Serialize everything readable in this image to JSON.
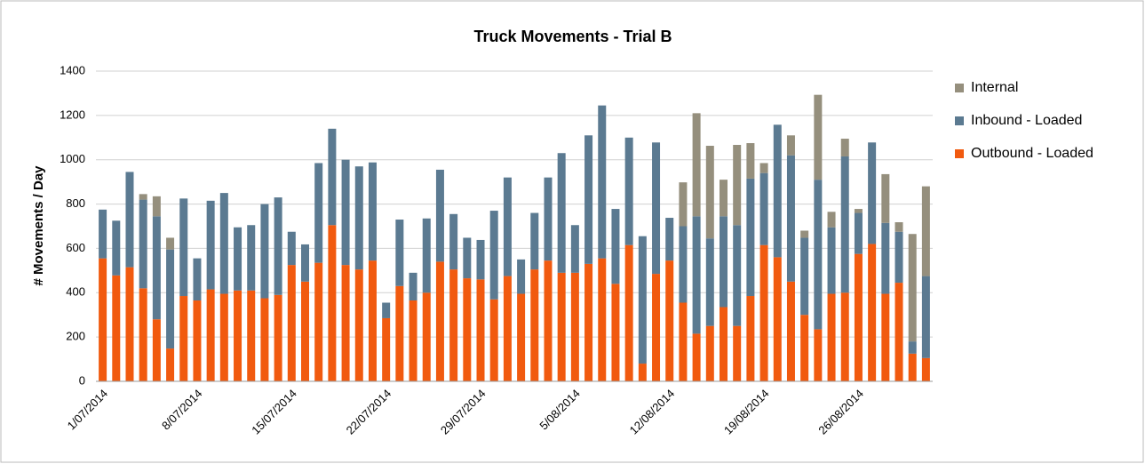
{
  "chart_data": {
    "type": "stacked_bar",
    "title": "Truck Movements - Trial B",
    "y_label": "# Movements / Day",
    "categories": [
      "1/07/2014",
      null,
      null,
      null,
      null,
      null,
      null,
      "8/07/2014",
      null,
      null,
      null,
      null,
      null,
      null,
      "15/07/2014",
      null,
      null,
      null,
      null,
      null,
      null,
      "22/07/2014",
      null,
      null,
      null,
      null,
      null,
      null,
      "29/07/2014",
      null,
      null,
      null,
      null,
      null,
      null,
      "5/08/2014",
      null,
      null,
      null,
      null,
      null,
      null,
      "12/08/2014",
      null,
      null,
      null,
      null,
      null,
      null,
      "19/08/2014",
      null,
      null,
      null,
      null,
      null,
      null,
      "26/08/2014",
      null,
      null,
      null,
      null,
      null
    ],
    "series": [
      {
        "name": "Outbound - Loaded",
        "color": "#f15a0f",
        "values": [
          555,
          478,
          515,
          420,
          280,
          148,
          385,
          365,
          415,
          395,
          410,
          410,
          375,
          390,
          525,
          450,
          535,
          705,
          525,
          505,
          545,
          285,
          430,
          365,
          400,
          540,
          505,
          465,
          460,
          370,
          475,
          395,
          505,
          545,
          490,
          490,
          530,
          555,
          440,
          615,
          80,
          485,
          545,
          355,
          215,
          250,
          335,
          250,
          385,
          615,
          560,
          450,
          300,
          235,
          395,
          400,
          575,
          620,
          395,
          445,
          125,
          105
        ]
      },
      {
        "name": "Inbound - Loaded",
        "color": "#5b7a91",
        "values": [
          220,
          247,
          430,
          400,
          465,
          447,
          440,
          190,
          400,
          455,
          285,
          295,
          425,
          440,
          150,
          168,
          450,
          435,
          475,
          465,
          443,
          70,
          300,
          125,
          335,
          415,
          250,
          183,
          178,
          400,
          445,
          155,
          255,
          375,
          540,
          215,
          580,
          690,
          338,
          485,
          575,
          593,
          193,
          345,
          530,
          395,
          410,
          455,
          530,
          325,
          598,
          570,
          348,
          675,
          300,
          615,
          185,
          458,
          320,
          230,
          55,
          370
        ]
      },
      {
        "name": "Internal",
        "color": "#958f7d",
        "values": [
          0,
          0,
          0,
          25,
          90,
          53,
          0,
          0,
          0,
          0,
          0,
          0,
          0,
          0,
          0,
          0,
          0,
          0,
          0,
          0,
          0,
          0,
          0,
          0,
          0,
          0,
          0,
          0,
          0,
          0,
          0,
          0,
          0,
          0,
          0,
          0,
          0,
          0,
          0,
          0,
          0,
          0,
          0,
          198,
          465,
          418,
          165,
          362,
          160,
          45,
          0,
          90,
          32,
          383,
          70,
          80,
          18,
          0,
          220,
          43,
          485,
          405
        ]
      }
    ],
    "ylim": [
      0,
      1400
    ],
    "yticks": [
      0,
      200,
      400,
      600,
      800,
      1000,
      1200,
      1400
    ],
    "grid": true,
    "legend": "right"
  }
}
